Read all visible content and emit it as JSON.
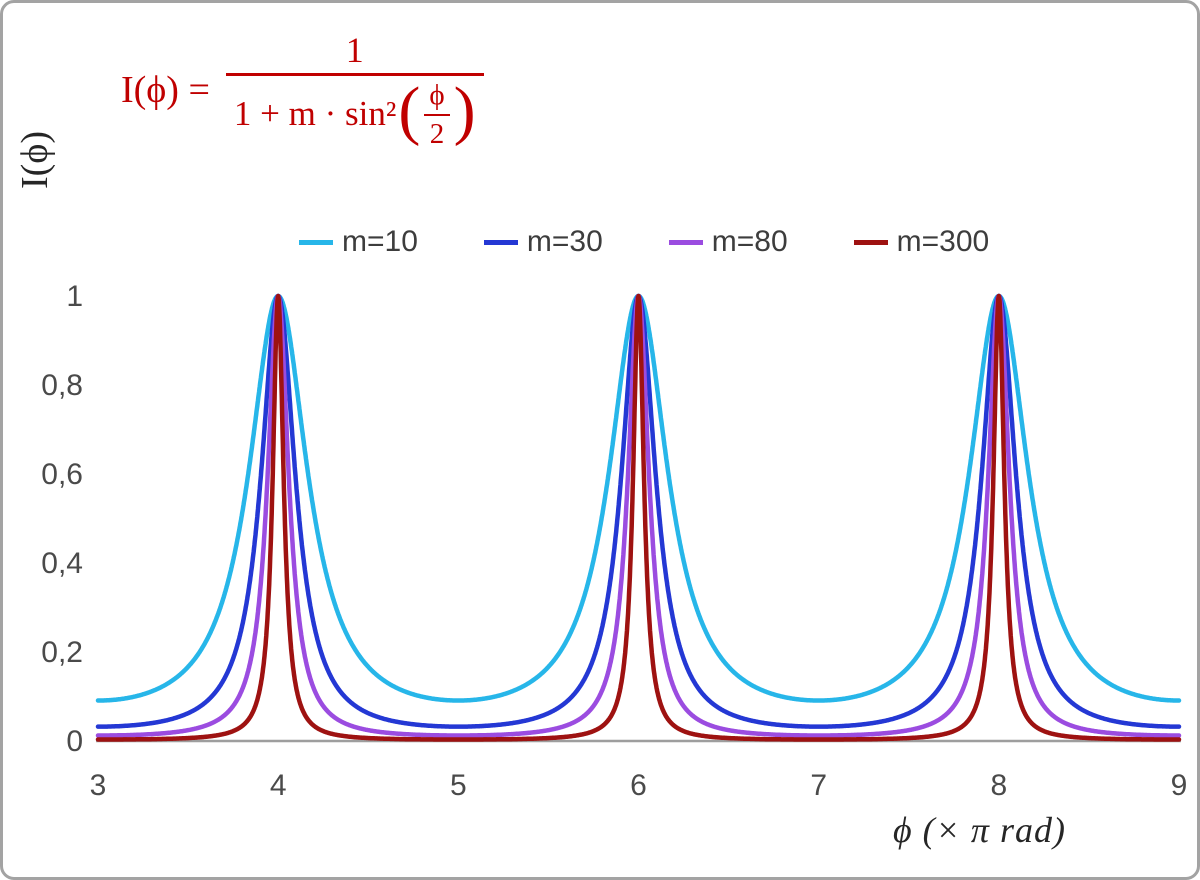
{
  "colors": {
    "formula": "#c00000",
    "axis_line": "#9e9e9e",
    "tick_text": "#4a4a4a",
    "axis_title_text": "#262626"
  },
  "formula": {
    "lhs": "I(ϕ) =",
    "numerator": "1",
    "denominator_text": "1 + m · sin²",
    "open_paren": "(",
    "inner_numerator": "ϕ",
    "inner_denominator": "2",
    "close_paren": ")"
  },
  "chart_data": {
    "type": "line",
    "function": "I(phi) = 1 / (1 + m * sin^2(phi/2)), x axis in units of pi rad",
    "xlabel": "ϕ  (× π rad)",
    "ylabel": "I(ϕ)",
    "x_range": [
      3,
      9
    ],
    "y_range": [
      0,
      1
    ],
    "x_ticks": [
      "3",
      "4",
      "5",
      "6",
      "7",
      "8",
      "9"
    ],
    "x_tick_values": [
      3,
      4,
      5,
      6,
      7,
      8,
      9
    ],
    "y_ticks": [
      "0",
      "0,2",
      "0,4",
      "0,6",
      "0,8",
      "1"
    ],
    "y_tick_values": [
      0,
      0.2,
      0.4,
      0.6,
      0.8,
      1
    ],
    "grid": false,
    "legend_position": "top",
    "peaks_at_x": [
      4,
      6,
      8
    ],
    "peak_value": 1,
    "series": [
      {
        "name": "m=10",
        "m": 10,
        "color": "#27b6e9"
      },
      {
        "name": "m=30",
        "m": 30,
        "color": "#2438d4"
      },
      {
        "name": "m=80",
        "m": 80,
        "color": "#9b4ce0"
      },
      {
        "name": "m=300",
        "m": 300,
        "color": "#9e1211"
      }
    ]
  }
}
